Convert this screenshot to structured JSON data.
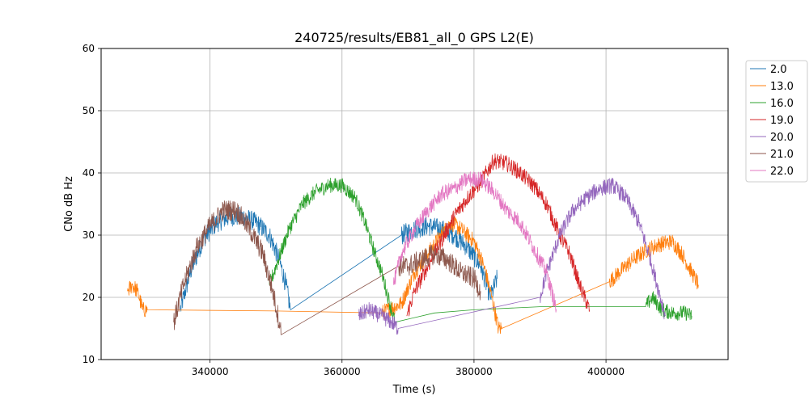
{
  "chart_data": {
    "type": "line",
    "title": "240725/results/EB81_all_0 GPS L2(E)",
    "xlabel": "Time (s)",
    "ylabel": "CNo dB Hz",
    "xlim": [
      323500,
      418500
    ],
    "ylim": [
      10,
      60
    ],
    "xticks": [
      340000,
      360000,
      380000,
      400000
    ],
    "xtick_labels": [
      "340000",
      "360000",
      "380000",
      "400000"
    ],
    "yticks": [
      10,
      20,
      30,
      40,
      50,
      60
    ],
    "ytick_labels": [
      "10",
      "20",
      "30",
      "40",
      "50",
      "60"
    ],
    "grid": true,
    "legend_position": "outside-top-right",
    "series": [
      {
        "name": "2.0",
        "color": "#1f77b4",
        "noise": 1.6,
        "x": [
          335500,
          337000,
          339000,
          341000,
          343000,
          345000,
          347000,
          349000,
          350500,
          351500,
          352200,
          369000,
          371000,
          373000,
          375000,
          377000,
          379000,
          381000,
          382500,
          383500
        ],
        "y": [
          18,
          24,
          29.5,
          32,
          33,
          33,
          32,
          30,
          26,
          22,
          18,
          30,
          31,
          31.5,
          31,
          30,
          28,
          25,
          20,
          23
        ]
      },
      {
        "name": "13.0",
        "color": "#ff7f0e",
        "noise": 1.3,
        "x": [
          327500,
          328200,
          329000,
          329800,
          330500,
          350000,
          366000,
          369000,
          371000,
          373000,
          375000,
          376500,
          378000,
          380000,
          381500,
          382700,
          383700,
          384200,
          400500,
          402000,
          404000,
          406000,
          408000,
          410000,
          411500,
          413000,
          414000
        ],
        "y": [
          21,
          22,
          21,
          18,
          18,
          17.8,
          17.5,
          19,
          24,
          27,
          30,
          32,
          31,
          29,
          25,
          20,
          15,
          15,
          22.5,
          24,
          26,
          27.5,
          28.5,
          29,
          27,
          24,
          22
        ]
      },
      {
        "name": "16.0",
        "color": "#2ca02c",
        "noise": 1.2,
        "x": [
          349000,
          350000,
          352000,
          354000,
          356000,
          358000,
          360000,
          362000,
          363500,
          365000,
          366000,
          367000,
          368000,
          374000,
          380000,
          390000,
          400000,
          406000,
          407000,
          408500,
          410000,
          412000,
          413000
        ],
        "y": [
          22,
          25,
          31,
          35,
          37,
          38,
          38,
          36,
          32,
          27,
          24,
          20,
          16,
          17.5,
          18,
          18.5,
          18.5,
          18.5,
          20,
          18,
          17.5,
          17.5,
          17
        ]
      },
      {
        "name": "19.0",
        "color": "#d62728",
        "noise": 1.3,
        "x": [
          369800,
          371000,
          373000,
          375000,
          377000,
          379000,
          381000,
          383000,
          385000,
          387000,
          389000,
          391000,
          393000,
          394500,
          396000,
          397500
        ],
        "y": [
          17,
          21,
          25,
          29,
          33,
          36,
          38.5,
          42,
          41.5,
          40,
          38,
          35,
          30,
          27,
          22,
          18
        ]
      },
      {
        "name": "20.0",
        "color": "#9467bd",
        "noise": 1.3,
        "x": [
          362500,
          364000,
          366000,
          367500,
          368500,
          390000,
          391000,
          393000,
          395000,
          397000,
          399000,
          401000,
          403000,
          405000,
          406500,
          408000,
          409000
        ],
        "y": [
          17,
          18,
          17,
          16,
          15,
          20,
          24,
          30,
          34,
          36,
          37.5,
          38,
          36,
          32,
          27,
          21,
          17
        ]
      },
      {
        "name": "21.0",
        "color": "#8c564b",
        "noise": 1.7,
        "x": [
          334500,
          336000,
          338000,
          340000,
          342000,
          344000,
          346000,
          348000,
          349500,
          350500,
          350800,
          368500,
          370000,
          372000,
          374000,
          376000,
          378000,
          380000,
          381000
        ],
        "y": [
          16,
          22,
          28,
          31.5,
          34,
          34,
          31,
          27,
          21,
          16,
          14,
          25,
          25,
          26,
          27,
          26,
          24,
          23,
          21
        ]
      },
      {
        "name": "22.0",
        "color": "#e377c2",
        "noise": 1.3,
        "x": [
          367800,
          369000,
          371000,
          373000,
          375000,
          377000,
          379000,
          381000,
          383000,
          385000,
          387000,
          389000,
          391000,
          392500
        ],
        "y": [
          22,
          27,
          31,
          34,
          36.5,
          37.5,
          39,
          39,
          37,
          34,
          32,
          28,
          24,
          18
        ]
      }
    ]
  }
}
